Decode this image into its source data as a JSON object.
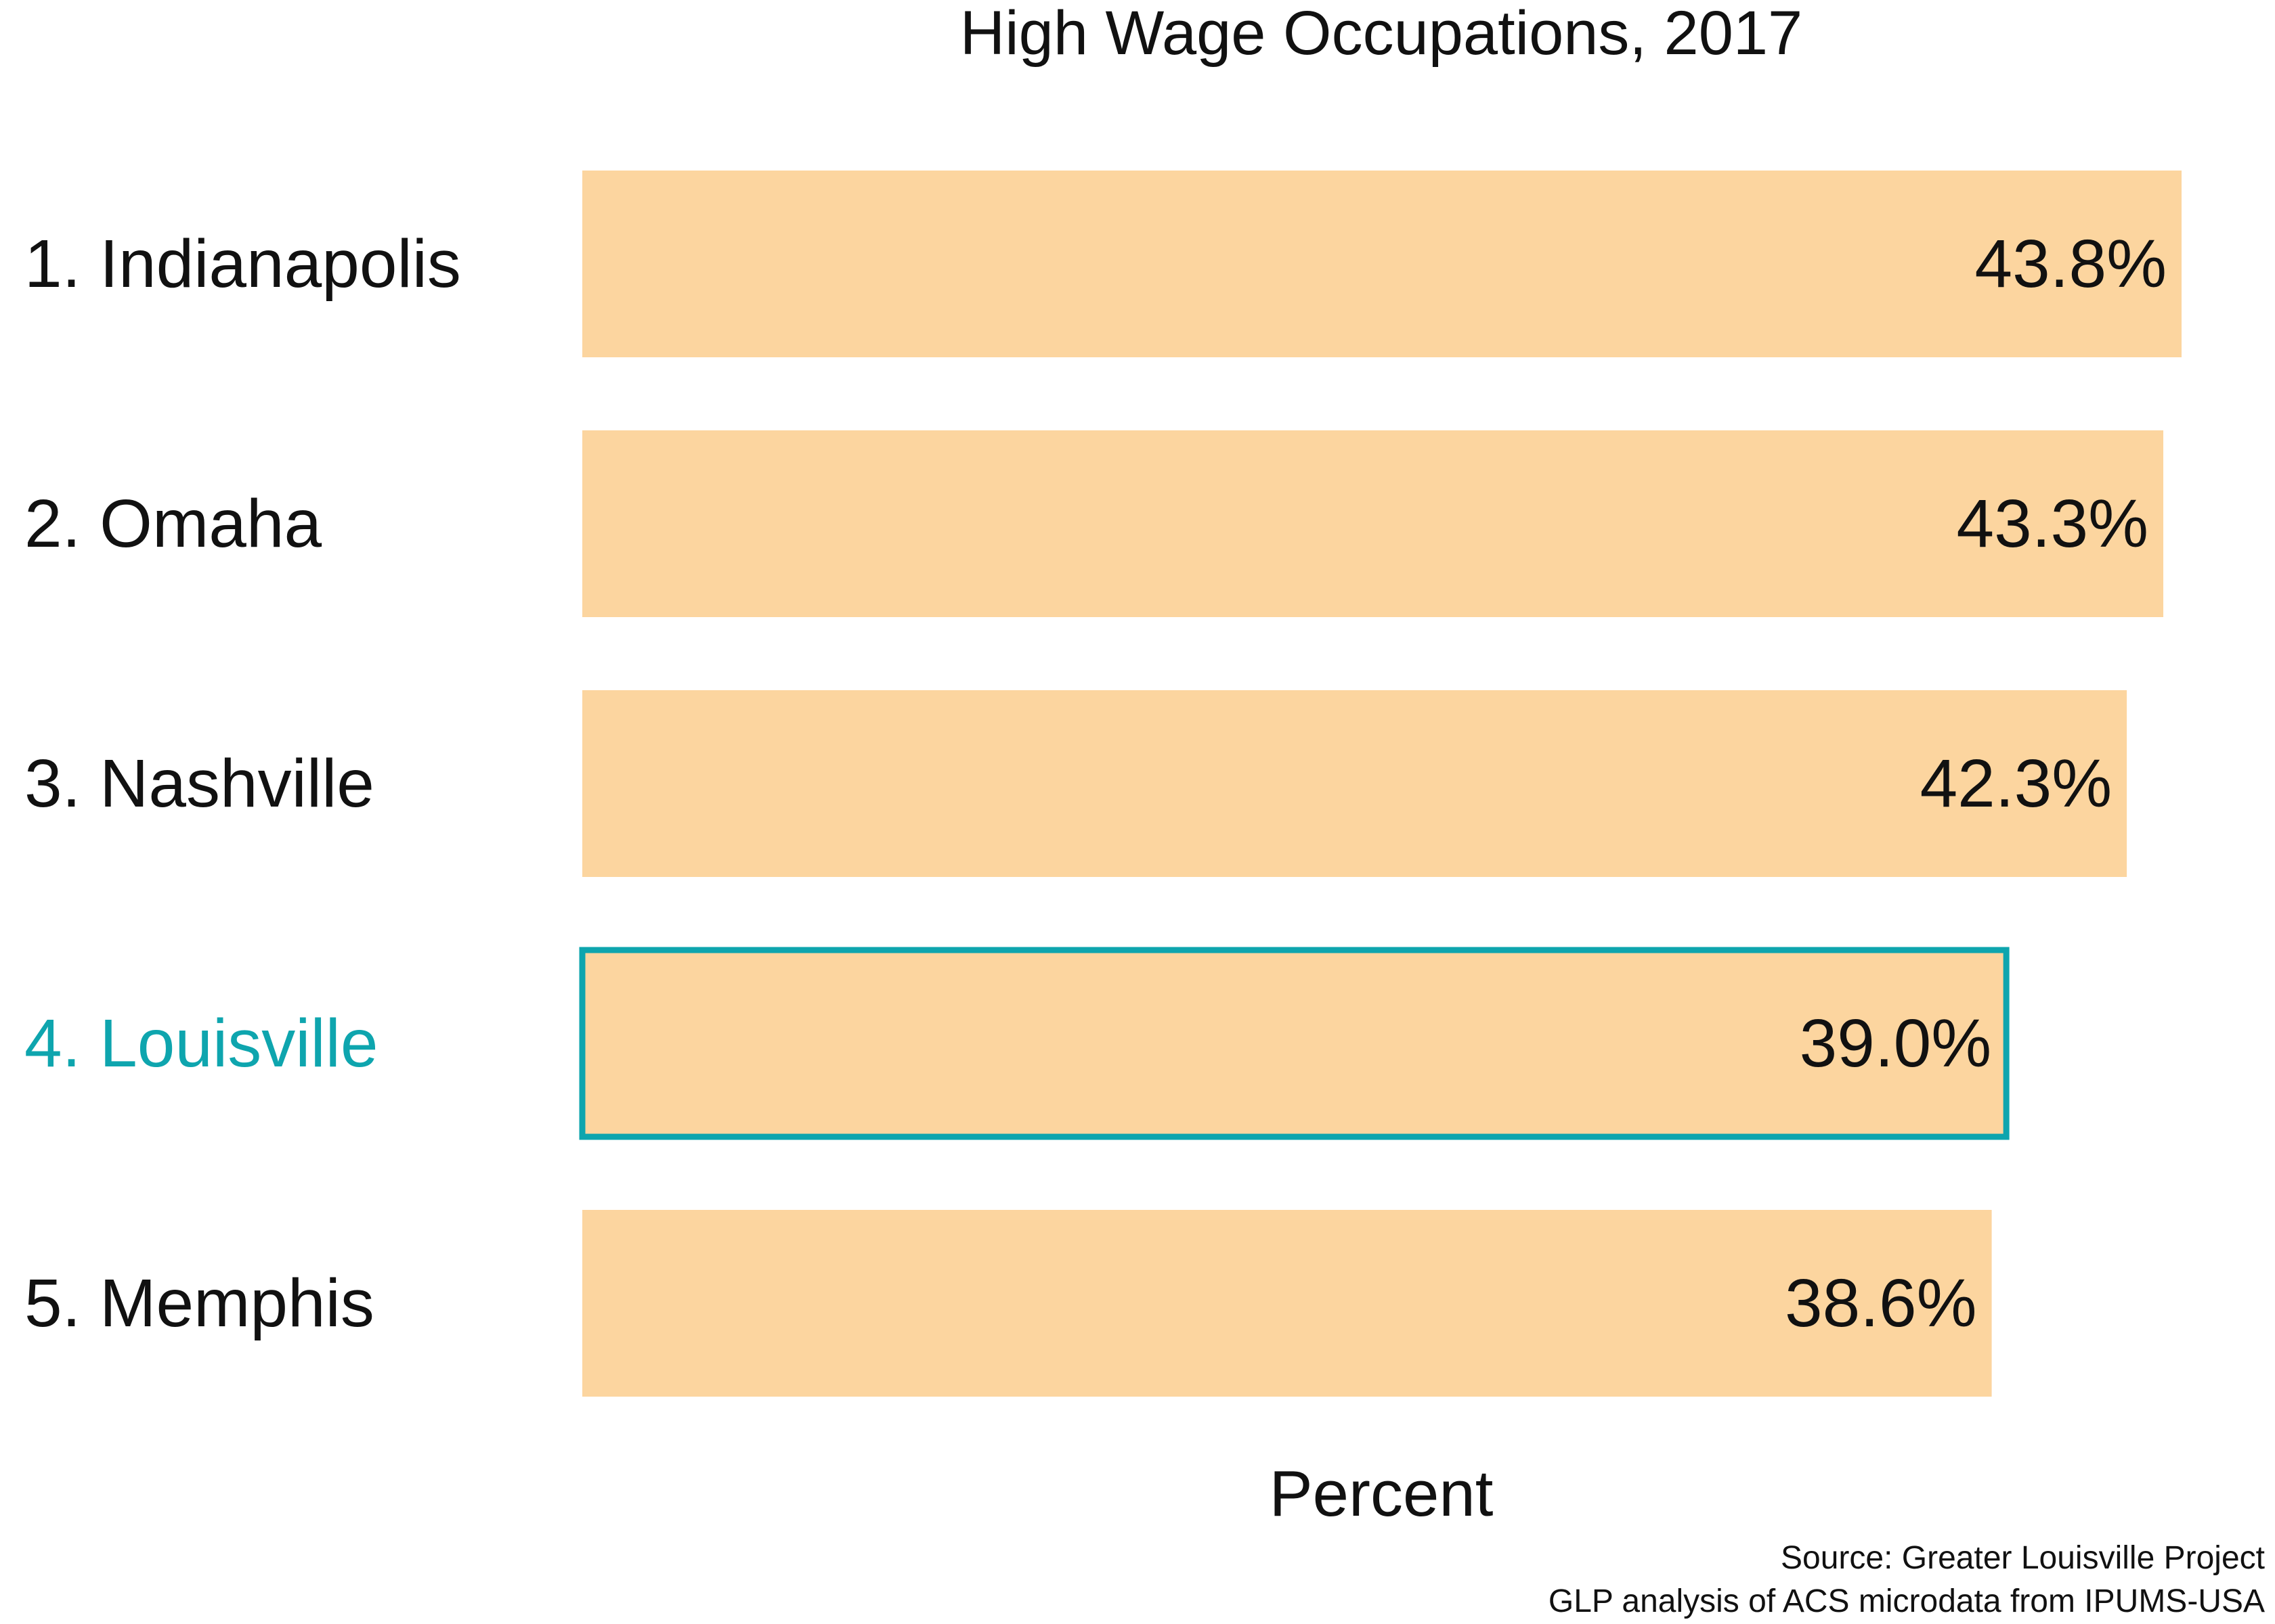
{
  "chart_data": {
    "type": "bar",
    "orientation": "horizontal",
    "title": "High Wage Occupations, 2017",
    "categories": [
      "1. Indianapolis",
      "2. Omaha",
      "3. Nashville",
      "4. Louisville",
      "5. Memphis"
    ],
    "values": [
      43.8,
      43.3,
      42.3,
      39.0,
      38.6
    ],
    "value_labels": [
      "43.8%",
      "43.3%",
      "42.3%",
      "39.0%",
      "38.6%"
    ],
    "highlight": "4. Louisville",
    "xlabel": "Percent",
    "ylabel": "",
    "xlim": [
      0,
      43.8
    ],
    "grid": false,
    "colors": {
      "bar": "#fcd59f",
      "highlight": "#0ea5ae",
      "text": "#111111"
    }
  },
  "source": {
    "line1": "Source: Greater Louisville Project",
    "line2": "GLP analysis of ACS microdata from IPUMS-USA"
  }
}
